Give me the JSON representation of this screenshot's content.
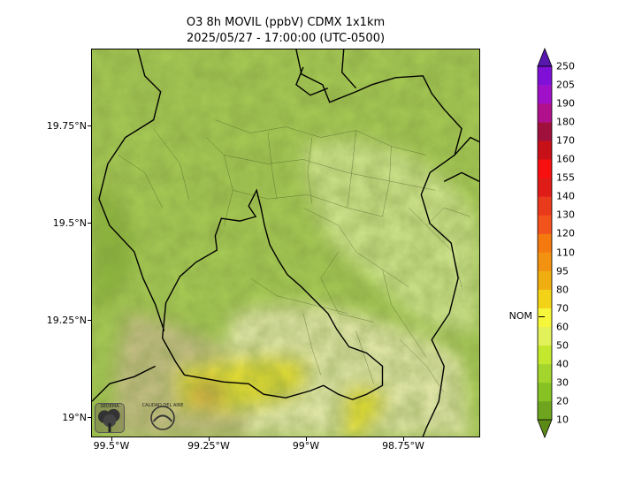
{
  "title": {
    "line1": "O3 8h MOVIL (ppbV) CDMX 1x1km",
    "line2": "2025/05/27 - 17:00:00 (UTC-0500)"
  },
  "axes": {
    "lat_labels": [
      "19.75°N",
      "19.5°N",
      "19.25°N",
      "19°N"
    ],
    "lon_labels": [
      "99.5°W",
      "99.25°W",
      "99°W",
      "98.75°W"
    ]
  },
  "colorbar": {
    "levels": [
      10,
      20,
      30,
      40,
      50,
      60,
      70,
      80,
      95,
      110,
      120,
      130,
      140,
      155,
      160,
      170,
      180,
      190,
      205,
      250
    ],
    "colors": [
      "#5c8a17",
      "#6fa51e",
      "#86c224",
      "#a3d52c",
      "#c4e82e",
      "#e2f05a",
      "#f6f63a",
      "#f2d317",
      "#f0ae10",
      "#f29210",
      "#f47a10",
      "#f2521c",
      "#ea3a1c",
      "#e01c18",
      "#f81010",
      "#c81018",
      "#a0103c",
      "#b0108c",
      "#a010c8",
      "#8010d8",
      "#5818b0"
    ],
    "nom_label": "NOM",
    "nom_value": 65
  },
  "logos": {
    "left": "SEDEMA",
    "right": "CALIDAD DEL AIRE"
  },
  "map": {
    "colors": {
      "base": "#a8cc55",
      "light": "#d2e890",
      "pale": "#e8ecb0",
      "tan": "#c9c08a",
      "yellow": "#e8e030",
      "green_dark": "#8fb83e",
      "orange_spot": "#d8b040"
    }
  }
}
